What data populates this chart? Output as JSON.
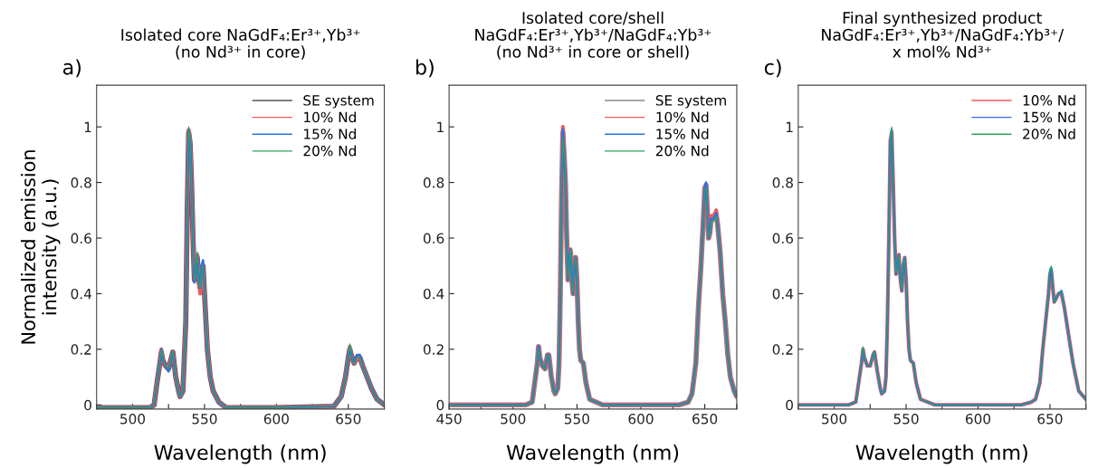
{
  "chart_data": [
    {
      "type": "line",
      "title": "Isolated core NaGdF₄:Er³⁺,Yb³⁺\n(no Nd³⁺ in core)",
      "xlabel": "Wavelength (nm)",
      "ylabel": "Normalized emission\nintensity (a.u.)",
      "annotations": [
        "a)"
      ],
      "x": [
        475,
        500,
        512,
        515,
        517,
        519,
        520,
        521,
        523,
        525,
        527,
        528,
        530,
        532,
        533,
        535,
        537,
        538,
        539,
        540,
        541,
        542,
        543,
        544,
        545,
        546,
        547,
        548,
        549,
        550,
        551,
        552,
        554,
        556,
        560,
        565,
        600,
        640,
        645,
        648,
        650,
        651,
        652,
        654,
        656,
        658,
        660,
        663,
        666,
        670,
        675
      ],
      "xlim": [
        475,
        675
      ],
      "ylim": [
        -0.015,
        1.15
      ],
      "xticks": [
        {
          "value": 475,
          "label": null
        },
        500,
        {
          "value": 525,
          "label": null
        },
        550,
        {
          "value": 575,
          "label": null
        },
        600,
        {
          "value": 625,
          "label": null
        },
        650,
        {
          "value": 675,
          "label": null
        }
      ],
      "yticks": [
        0,
        0.2,
        0.4,
        0.6,
        0.8,
        1
      ],
      "legend": "top right",
      "grid": false,
      "series": [
        {
          "name": "SE system",
          "color": "#555555",
          "values": [
            -0.01,
            -0.01,
            -0.01,
            0.0,
            0.08,
            0.15,
            0.19,
            0.16,
            0.14,
            0.13,
            0.17,
            0.19,
            0.1,
            0.05,
            0.03,
            0.05,
            0.3,
            0.7,
            0.98,
            0.94,
            0.8,
            0.6,
            0.45,
            0.47,
            0.53,
            0.45,
            0.42,
            0.49,
            0.5,
            0.4,
            0.3,
            0.2,
            0.1,
            0.05,
            0.01,
            -0.01,
            -0.01,
            -0.005,
            0.03,
            0.1,
            0.17,
            0.2,
            0.18,
            0.15,
            0.17,
            0.17,
            0.14,
            0.1,
            0.06,
            0.02,
            0.0
          ]
        },
        {
          "name": "10% Nd",
          "color": "#f05a5a",
          "values": [
            -0.01,
            -0.01,
            -0.01,
            0.0,
            0.08,
            0.15,
            0.2,
            0.16,
            0.14,
            0.13,
            0.17,
            0.19,
            0.1,
            0.05,
            0.03,
            0.05,
            0.3,
            0.7,
            0.99,
            0.95,
            0.8,
            0.6,
            0.45,
            0.47,
            0.54,
            0.45,
            0.4,
            0.49,
            0.5,
            0.4,
            0.3,
            0.2,
            0.1,
            0.05,
            0.01,
            -0.01,
            -0.01,
            -0.005,
            0.03,
            0.1,
            0.17,
            0.21,
            0.18,
            0.15,
            0.17,
            0.17,
            0.14,
            0.1,
            0.06,
            0.02,
            0.0
          ]
        },
        {
          "name": "15% Nd",
          "color": "#2f6fe0",
          "values": [
            -0.01,
            -0.01,
            -0.01,
            0.0,
            0.08,
            0.15,
            0.2,
            0.16,
            0.14,
            0.12,
            0.17,
            0.19,
            0.1,
            0.05,
            0.03,
            0.05,
            0.3,
            0.7,
            0.99,
            0.95,
            0.8,
            0.6,
            0.44,
            0.47,
            0.54,
            0.45,
            0.42,
            0.5,
            0.52,
            0.4,
            0.3,
            0.2,
            0.1,
            0.05,
            0.01,
            -0.01,
            -0.01,
            -0.005,
            0.03,
            0.1,
            0.17,
            0.21,
            0.18,
            0.15,
            0.18,
            0.18,
            0.14,
            0.1,
            0.06,
            0.02,
            0.0
          ]
        },
        {
          "name": "20% Nd",
          "color": "#2aa55a",
          "values": [
            -0.01,
            -0.01,
            -0.01,
            0.0,
            0.08,
            0.15,
            0.2,
            0.16,
            0.14,
            0.13,
            0.17,
            0.19,
            0.1,
            0.05,
            0.03,
            0.05,
            0.3,
            0.7,
            1.0,
            0.95,
            0.8,
            0.6,
            0.45,
            0.47,
            0.55,
            0.45,
            0.42,
            0.49,
            0.5,
            0.4,
            0.3,
            0.2,
            0.1,
            0.05,
            0.01,
            -0.01,
            -0.01,
            -0.005,
            0.03,
            0.1,
            0.17,
            0.22,
            0.18,
            0.15,
            0.17,
            0.17,
            0.14,
            0.1,
            0.06,
            0.02,
            0.0
          ]
        }
      ]
    },
    {
      "type": "line",
      "title": "Isolated core/shell\nNaGdF₄:Er³⁺,Yb³⁺/NaGdF₄:Yb³⁺\n(no Nd³⁺ in core or shell)",
      "xlabel": "Wavelength (nm)",
      "annotations": [
        "b)"
      ],
      "x": [
        450,
        510,
        515,
        517,
        519,
        520,
        521,
        523,
        525,
        527,
        528,
        530,
        532,
        533,
        535,
        536,
        537,
        538,
        539,
        540,
        541,
        542,
        543,
        544,
        545,
        546,
        547,
        548,
        549,
        550,
        551,
        552,
        553,
        555,
        557,
        560,
        570,
        630,
        637,
        640,
        643,
        645,
        647,
        649,
        650,
        651,
        652,
        653,
        654,
        655,
        657,
        658,
        659,
        660,
        662,
        664,
        666,
        668,
        670,
        673,
        675
      ],
      "xlim": [
        450,
        675
      ],
      "ylim": [
        -0.015,
        1.15
      ],
      "xticks": [
        450,
        {
          "value": 475,
          "label": null
        },
        500,
        {
          "value": 525,
          "label": null
        },
        550,
        {
          "value": 575,
          "label": null
        },
        600,
        {
          "value": 625,
          "label": null
        },
        650,
        {
          "value": 675,
          "label": null
        }
      ],
      "yticks": [
        0,
        0.2,
        0.4,
        0.6,
        0.8,
        1
      ],
      "legend": "top right",
      "grid": false,
      "series": [
        {
          "name": "SE system",
          "color": "#888888",
          "values": [
            0,
            0,
            0.01,
            0.08,
            0.15,
            0.21,
            0.17,
            0.14,
            0.13,
            0.18,
            0.18,
            0.1,
            0.05,
            0.04,
            0.06,
            0.15,
            0.4,
            0.75,
            0.98,
            0.9,
            0.8,
            0.6,
            0.45,
            0.52,
            0.55,
            0.45,
            0.4,
            0.5,
            0.53,
            0.45,
            0.3,
            0.2,
            0.16,
            0.15,
            0.08,
            0.02,
            0.0,
            0.0,
            0.01,
            0.04,
            0.15,
            0.35,
            0.5,
            0.68,
            0.78,
            0.79,
            0.7,
            0.6,
            0.62,
            0.67,
            0.67,
            0.68,
            0.68,
            0.65,
            0.55,
            0.4,
            0.3,
            0.18,
            0.1,
            0.05,
            0.03
          ]
        },
        {
          "name": "10% Nd",
          "color": "#f05a5a",
          "values": [
            0,
            0,
            0.01,
            0.08,
            0.15,
            0.21,
            0.17,
            0.14,
            0.13,
            0.18,
            0.18,
            0.1,
            0.05,
            0.04,
            0.06,
            0.15,
            0.4,
            0.75,
            1.0,
            0.9,
            0.8,
            0.6,
            0.45,
            0.52,
            0.56,
            0.45,
            0.4,
            0.5,
            0.53,
            0.45,
            0.3,
            0.2,
            0.16,
            0.15,
            0.08,
            0.02,
            0.0,
            0.0,
            0.01,
            0.04,
            0.15,
            0.35,
            0.5,
            0.68,
            0.78,
            0.79,
            0.7,
            0.6,
            0.62,
            0.68,
            0.68,
            0.69,
            0.7,
            0.65,
            0.55,
            0.4,
            0.3,
            0.18,
            0.1,
            0.05,
            0.03
          ]
        },
        {
          "name": "15% Nd",
          "color": "#2f6fe0",
          "values": [
            0,
            0,
            0.01,
            0.08,
            0.15,
            0.21,
            0.17,
            0.14,
            0.13,
            0.18,
            0.18,
            0.1,
            0.05,
            0.04,
            0.06,
            0.15,
            0.4,
            0.75,
            0.99,
            0.9,
            0.8,
            0.6,
            0.45,
            0.52,
            0.56,
            0.45,
            0.4,
            0.5,
            0.53,
            0.45,
            0.3,
            0.2,
            0.16,
            0.15,
            0.08,
            0.02,
            0.0,
            0.0,
            0.01,
            0.04,
            0.15,
            0.35,
            0.5,
            0.68,
            0.78,
            0.8,
            0.7,
            0.6,
            0.62,
            0.67,
            0.67,
            0.68,
            0.69,
            0.65,
            0.55,
            0.4,
            0.3,
            0.18,
            0.1,
            0.05,
            0.03
          ]
        },
        {
          "name": "20% Nd",
          "color": "#2aa55a",
          "values": [
            0,
            0,
            0.01,
            0.08,
            0.15,
            0.2,
            0.17,
            0.14,
            0.13,
            0.18,
            0.18,
            0.1,
            0.05,
            0.04,
            0.06,
            0.15,
            0.4,
            0.75,
            0.96,
            0.9,
            0.8,
            0.6,
            0.45,
            0.52,
            0.56,
            0.45,
            0.4,
            0.5,
            0.53,
            0.45,
            0.3,
            0.2,
            0.16,
            0.15,
            0.08,
            0.02,
            0.0,
            0.0,
            0.01,
            0.04,
            0.15,
            0.35,
            0.5,
            0.68,
            0.77,
            0.78,
            0.7,
            0.6,
            0.62,
            0.66,
            0.66,
            0.67,
            0.68,
            0.65,
            0.55,
            0.4,
            0.3,
            0.18,
            0.1,
            0.05,
            0.03
          ]
        }
      ]
    },
    {
      "type": "line",
      "title": "Final synthesized product\nNaGdF₄:Er³⁺,Yb³⁺/NaGdF₄:Yb³⁺/\nx mol% Nd³⁺",
      "xlabel": "Wavelength (nm)",
      "annotations": [
        "c)"
      ],
      "x": [
        475,
        500,
        510,
        515,
        517,
        519,
        520,
        521,
        523,
        525,
        527,
        528,
        530,
        532,
        533,
        535,
        536,
        537,
        538,
        539,
        540,
        541,
        542,
        543,
        544,
        545,
        546,
        547,
        548,
        549,
        550,
        551,
        552,
        553,
        555,
        557,
        560,
        570,
        630,
        637,
        640,
        643,
        645,
        647,
        649,
        650,
        651,
        652,
        653,
        654,
        656,
        658,
        660,
        663,
        666,
        670,
        675
      ],
      "xlim": [
        475,
        675
      ],
      "ylim": [
        -0.015,
        1.15
      ],
      "xticks": [
        {
          "value": 475,
          "label": null
        },
        500,
        {
          "value": 525,
          "label": null
        },
        550,
        {
          "value": 575,
          "label": null
        },
        600,
        {
          "value": 625,
          "label": null
        },
        650,
        {
          "value": 675,
          "label": null
        }
      ],
      "yticks": [
        0,
        0.2,
        0.4,
        0.6,
        0.8,
        1
      ],
      "legend": "top right",
      "grid": false,
      "series": [
        {
          "name": "10% Nd",
          "color": "#f05a5a",
          "values": [
            0,
            0,
            0.0,
            0.01,
            0.08,
            0.15,
            0.2,
            0.17,
            0.14,
            0.14,
            0.18,
            0.19,
            0.12,
            0.06,
            0.04,
            0.05,
            0.1,
            0.3,
            0.6,
            0.95,
            0.98,
            0.8,
            0.6,
            0.47,
            0.5,
            0.54,
            0.45,
            0.41,
            0.5,
            0.53,
            0.45,
            0.3,
            0.2,
            0.16,
            0.15,
            0.08,
            0.02,
            0.0,
            0.0,
            0.01,
            0.02,
            0.08,
            0.2,
            0.3,
            0.4,
            0.47,
            0.48,
            0.42,
            0.37,
            0.38,
            0.4,
            0.4,
            0.35,
            0.25,
            0.15,
            0.05,
            0.02
          ]
        },
        {
          "name": "15% Nd",
          "color": "#2f6fe0",
          "values": [
            0,
            0,
            0.0,
            0.01,
            0.08,
            0.15,
            0.2,
            0.17,
            0.14,
            0.14,
            0.18,
            0.19,
            0.12,
            0.06,
            0.04,
            0.05,
            0.1,
            0.3,
            0.6,
            0.95,
            0.99,
            0.8,
            0.6,
            0.47,
            0.5,
            0.54,
            0.45,
            0.41,
            0.5,
            0.53,
            0.45,
            0.3,
            0.2,
            0.16,
            0.15,
            0.08,
            0.02,
            0.0,
            0.0,
            0.01,
            0.02,
            0.08,
            0.2,
            0.3,
            0.4,
            0.48,
            0.49,
            0.42,
            0.37,
            0.38,
            0.4,
            0.41,
            0.35,
            0.25,
            0.15,
            0.05,
            0.02
          ]
        },
        {
          "name": "20% Nd",
          "color": "#2aa55a",
          "values": [
            0,
            0,
            0.0,
            0.01,
            0.08,
            0.15,
            0.21,
            0.17,
            0.14,
            0.14,
            0.18,
            0.19,
            0.12,
            0.06,
            0.04,
            0.05,
            0.1,
            0.3,
            0.6,
            0.96,
            1.0,
            0.8,
            0.6,
            0.47,
            0.5,
            0.54,
            0.45,
            0.41,
            0.5,
            0.53,
            0.45,
            0.3,
            0.2,
            0.16,
            0.15,
            0.08,
            0.02,
            0.0,
            0.0,
            0.01,
            0.02,
            0.08,
            0.2,
            0.3,
            0.4,
            0.49,
            0.5,
            0.42,
            0.37,
            0.38,
            0.4,
            0.41,
            0.35,
            0.25,
            0.15,
            0.05,
            0.02
          ]
        }
      ]
    }
  ]
}
